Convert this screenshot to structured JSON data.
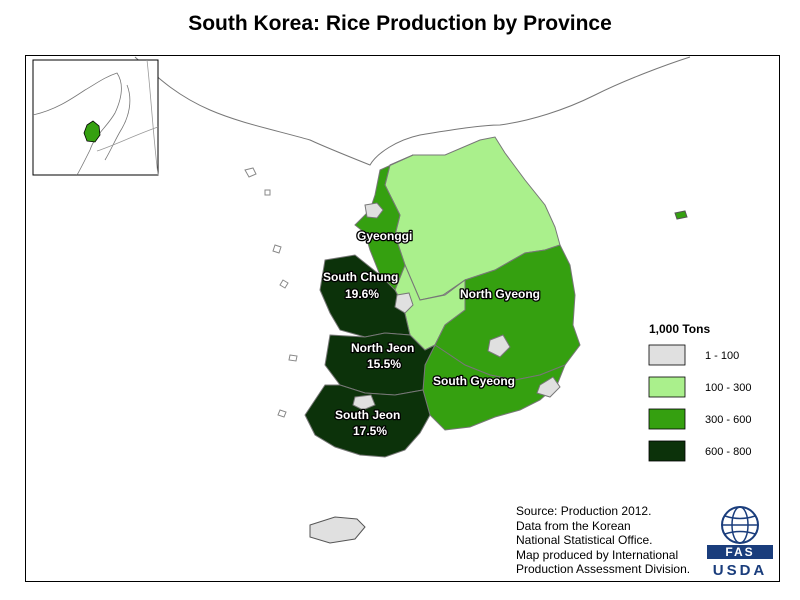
{
  "title": "South Korea: Rice Production by Province",
  "legend": {
    "title": "1,000 Tons",
    "classes": [
      {
        "range": "1 - 100",
        "color": "#e0e0e0"
      },
      {
        "range": "100 - 300",
        "color": "#aaf08c"
      },
      {
        "range": "300 - 600",
        "color": "#35a010"
      },
      {
        "range": "600 - 800",
        "color": "#0c320a"
      }
    ]
  },
  "regions": [
    {
      "name": "Gyeonggi",
      "share": "",
      "class": 2
    },
    {
      "name": "South Chung",
      "share": "19.6%",
      "class": 3
    },
    {
      "name": "North Jeon",
      "share": "15.5%",
      "class": 3
    },
    {
      "name": "South Jeon",
      "share": "17.5%",
      "class": 3
    },
    {
      "name": "North Gyeong",
      "share": "",
      "class": 2
    },
    {
      "name": "South Gyeong",
      "share": "",
      "class": 2
    }
  ],
  "source": {
    "lines": [
      "Source: Production 2012.",
      "Data from the Korean",
      "National Statistical Office.",
      "Map produced by International",
      "Production Assessment Division."
    ]
  },
  "logo": {
    "top": "FAS",
    "bottom": "USDA"
  }
}
